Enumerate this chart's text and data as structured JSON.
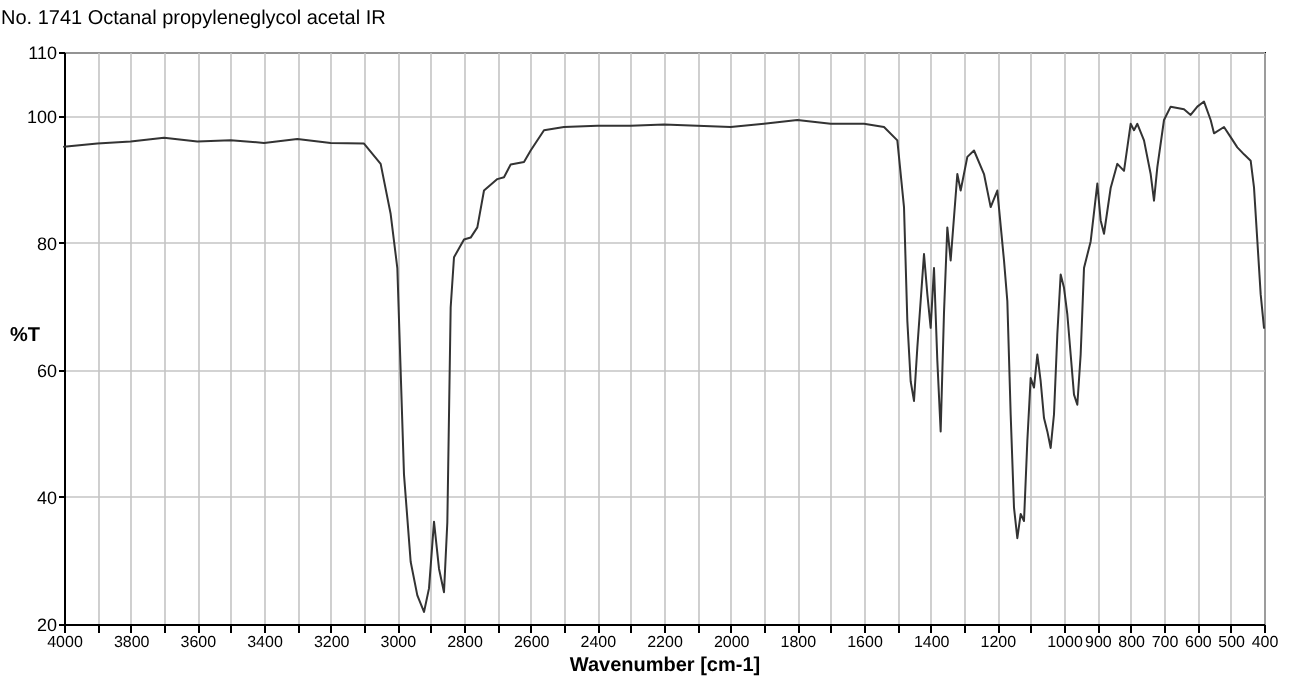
{
  "chart_data": {
    "type": "line",
    "title": "No. 1741 Octanal propyleneglycol acetal IR",
    "xlabel": "Wavenumber [cm-1]",
    "ylabel": "%T",
    "x": [
      4000,
      3900,
      3800,
      3700,
      3600,
      3500,
      3400,
      3300,
      3200,
      3100,
      3050,
      3020,
      3000,
      2980,
      2960,
      2940,
      2920,
      2905,
      2890,
      2875,
      2860,
      2850,
      2840,
      2830,
      2800,
      2780,
      2760,
      2740,
      2700,
      2680,
      2660,
      2620,
      2600,
      2560,
      2500,
      2400,
      2300,
      2200,
      2000,
      1900,
      1800,
      1700,
      1600,
      1540,
      1500,
      1480,
      1470,
      1460,
      1450,
      1440,
      1420,
      1410,
      1400,
      1390,
      1380,
      1370,
      1360,
      1350,
      1340,
      1320,
      1310,
      1290,
      1270,
      1240,
      1220,
      1200,
      1180,
      1170,
      1160,
      1150,
      1140,
      1130,
      1120,
      1110,
      1100,
      1090,
      1080,
      1070,
      1060,
      1050,
      1040,
      1030,
      1020,
      1010,
      1000,
      990,
      980,
      970,
      960,
      950,
      940,
      920,
      900,
      890,
      880,
      860,
      840,
      820,
      800,
      790,
      780,
      760,
      740,
      730,
      720,
      700,
      680,
      640,
      620,
      600,
      580,
      560,
      550,
      520,
      500,
      480,
      460,
      440,
      430,
      420,
      410,
      400
    ],
    "series": [
      {
        "color": "#333333",
        "values": [
          95.1,
          95.6,
          95.9,
          96.5,
          95.9,
          96.1,
          95.7,
          96.3,
          95.7,
          95.6,
          92.4,
          84.5,
          76,
          43.5,
          29.8,
          24.5,
          21.9,
          25.6,
          36.1,
          28.7,
          25,
          36,
          69.8,
          77.7,
          80.5,
          80.8,
          82.4,
          88.2,
          90,
          90.3,
          92.3,
          92.7,
          94.5,
          97.7,
          98.2,
          98.4,
          98.4,
          98.6,
          98.2,
          98.7,
          99.3,
          98.7,
          98.7,
          98.2,
          96.1,
          85.6,
          67.7,
          58.2,
          55.1,
          63.5,
          78.2,
          71.9,
          66.6,
          76,
          61.4,
          50.3,
          69,
          82.4,
          77.2,
          90.8,
          88.2,
          93.5,
          94.5,
          90.8,
          85.6,
          88.2,
          77.2,
          70.8,
          53,
          38.3,
          33.5,
          37.3,
          36.2,
          48.8,
          58.7,
          57.2,
          62.4,
          58.2,
          52.4,
          50.3,
          47.7,
          53,
          65.6,
          75,
          72.9,
          68.7,
          62.4,
          56.1,
          54.5,
          62.4,
          76,
          80.2,
          89.3,
          83.5,
          81.4,
          88.6,
          92.4,
          91.3,
          98.7,
          97.7,
          98.7,
          96.1,
          90.8,
          86.6,
          91.9,
          99.3,
          101.4,
          101,
          100.1,
          101.4,
          102.2,
          99.3,
          97.2,
          98.2,
          96.6,
          95,
          93.9,
          92.9,
          88.7,
          80.3,
          71.9,
          66.6
        ]
      }
    ],
    "xlim": [
      4000,
      400
    ],
    "xticks": [
      4000,
      {
        "value": 3900,
        "label": null
      },
      3800,
      {
        "value": 3700,
        "label": null
      },
      3600,
      {
        "value": 3500,
        "label": null
      },
      3400,
      {
        "value": 3300,
        "label": null
      },
      3200,
      {
        "value": 3100,
        "label": null
      },
      3000,
      {
        "value": 2900,
        "label": null
      },
      2800,
      {
        "value": 2700,
        "label": null
      },
      2600,
      {
        "value": 2500,
        "label": null
      },
      2400,
      {
        "value": 2300,
        "label": null
      },
      2200,
      {
        "value": 2100,
        "label": null
      },
      2000,
      {
        "value": 1900,
        "label": null
      },
      1800,
      {
        "value": 1700,
        "label": null
      },
      1600,
      {
        "value": 1500,
        "label": null
      },
      1400,
      {
        "value": 1300,
        "label": null
      },
      1200,
      {
        "value": 1100,
        "label": null
      },
      1000,
      900,
      800,
      700,
      600,
      500,
      400
    ],
    "ylim": [
      20,
      110
    ],
    "yticks": [
      20,
      40,
      60,
      80,
      100,
      110
    ],
    "grid": true,
    "marker": "none",
    "line_style": "solid"
  }
}
